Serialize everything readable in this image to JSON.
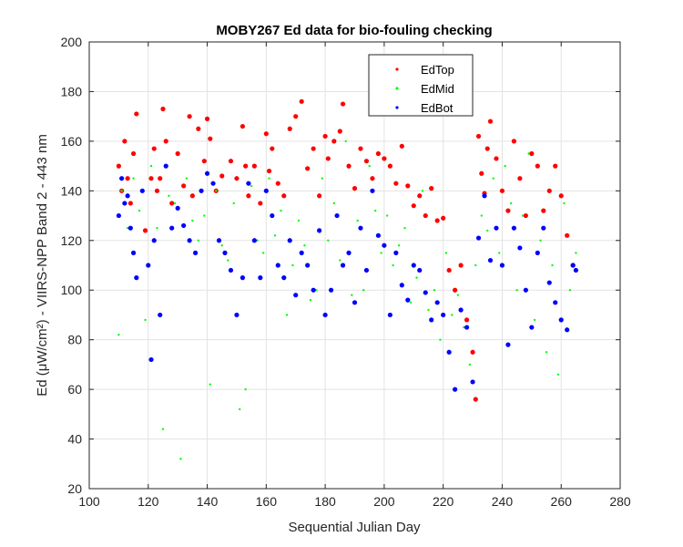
{
  "chart_data": {
    "type": "scatter",
    "title": "MOBY267 Ed data for bio-fouling checking",
    "xlabel": "Sequential Julian Day",
    "ylabel": "Ed (μW/cm²) - VIIRS-NPP Band 2 - 443 nm",
    "xlim": [
      100,
      280
    ],
    "ylim": [
      20,
      200
    ],
    "xticks": [
      100,
      120,
      140,
      160,
      180,
      200,
      220,
      240,
      260,
      280
    ],
    "yticks": [
      20,
      40,
      60,
      80,
      100,
      120,
      140,
      160,
      180,
      200
    ],
    "grid": true,
    "legend_position": "top-right",
    "colors": {
      "EdTop": "#ff0000",
      "EdMid": "#00ff00",
      "EdBot": "#0000ff"
    },
    "series": [
      {
        "name": "EdTop",
        "color": "#ff0000",
        "x": [
          110,
          111,
          112,
          113,
          114,
          115,
          116,
          119,
          121,
          122,
          123,
          124,
          125,
          126,
          128,
          130,
          132,
          134,
          135,
          137,
          139,
          140,
          141,
          143,
          145,
          148,
          150,
          152,
          153,
          154,
          156,
          158,
          160,
          161,
          162,
          164,
          166,
          168,
          170,
          172,
          174,
          176,
          178,
          180,
          181,
          183,
          185,
          186,
          188,
          190,
          192,
          194,
          196,
          198,
          200,
          202,
          204,
          206,
          208,
          210,
          212,
          214,
          216,
          218,
          220,
          222,
          224,
          226,
          228,
          230,
          231,
          232,
          233,
          234,
          235,
          236,
          238,
          240,
          242,
          244,
          246,
          248,
          250,
          252,
          254,
          256,
          258,
          260,
          262,
          264
        ],
        "y": [
          150,
          140,
          160,
          145,
          135,
          155,
          171,
          124,
          145,
          157,
          140,
          145,
          173,
          160,
          135,
          155,
          142,
          170,
          138,
          165,
          152,
          169,
          161,
          140,
          146,
          152,
          145,
          166,
          150,
          138,
          150,
          135,
          163,
          148,
          157,
          143,
          138,
          165,
          170,
          176,
          149,
          157,
          138,
          162,
          153,
          160,
          164,
          175,
          150,
          141,
          157,
          152,
          145,
          155,
          153,
          150,
          143,
          158,
          142,
          134,
          138,
          130,
          141,
          128,
          129,
          108,
          100,
          110,
          88,
          75,
          56,
          162,
          147,
          139,
          157,
          168,
          153,
          140,
          132,
          160,
          145,
          130,
          155,
          150,
          132,
          140,
          150,
          138,
          122,
          110
        ]
      },
      {
        "name": "EdMid",
        "color": "#00ff00",
        "x": [
          110,
          111,
          113,
          115,
          117,
          119,
          121,
          123,
          125,
          127,
          129,
          131,
          133,
          135,
          137,
          139,
          141,
          143,
          145,
          147,
          149,
          151,
          153,
          155,
          157,
          159,
          161,
          163,
          165,
          167,
          169,
          171,
          173,
          175,
          177,
          179,
          181,
          183,
          185,
          187,
          189,
          191,
          193,
          195,
          197,
          199,
          201,
          203,
          205,
          207,
          209,
          211,
          213,
          215,
          217,
          219,
          221,
          223,
          225,
          227,
          229,
          231,
          233,
          235,
          237,
          239,
          241,
          243,
          245,
          247,
          249,
          251,
          253,
          255,
          257,
          259,
          261,
          263,
          265
        ],
        "y": [
          82,
          140,
          125,
          145,
          132,
          88,
          150,
          125,
          44,
          138,
          135,
          32,
          145,
          128,
          120,
          130,
          62,
          140,
          118,
          112,
          135,
          52,
          60,
          142,
          120,
          115,
          145,
          122,
          132,
          90,
          110,
          128,
          118,
          96,
          100,
          145,
          120,
          135,
          112,
          160,
          98,
          128,
          100,
          150,
          132,
          115,
          130,
          110,
          118,
          125,
          95,
          105,
          140,
          92,
          100,
          80,
          115,
          90,
          98,
          85,
          70,
          110,
          130,
          124,
          145,
          115,
          150,
          135,
          100,
          130,
          155,
          88,
          120,
          75,
          110,
          66,
          135,
          100,
          115
        ]
      },
      {
        "name": "EdBot",
        "color": "#0000ff",
        "x": [
          110,
          111,
          112,
          113,
          114,
          115,
          116,
          118,
          120,
          121,
          122,
          124,
          126,
          128,
          130,
          132,
          134,
          136,
          138,
          140,
          142,
          144,
          146,
          148,
          150,
          152,
          154,
          156,
          158,
          160,
          162,
          164,
          166,
          168,
          170,
          172,
          174,
          176,
          178,
          180,
          182,
          184,
          186,
          188,
          190,
          192,
          194,
          196,
          198,
          200,
          202,
          204,
          206,
          208,
          210,
          212,
          214,
          216,
          218,
          220,
          222,
          224,
          226,
          228,
          230,
          232,
          234,
          236,
          238,
          240,
          242,
          244,
          246,
          248,
          250,
          252,
          254,
          256,
          258,
          260,
          262,
          264,
          265
        ],
        "y": [
          130,
          145,
          135,
          138,
          125,
          115,
          105,
          140,
          110,
          72,
          120,
          90,
          150,
          125,
          133,
          126,
          120,
          115,
          140,
          147,
          143,
          120,
          115,
          108,
          90,
          105,
          143,
          120,
          105,
          140,
          130,
          110,
          105,
          120,
          98,
          115,
          110,
          100,
          124,
          90,
          100,
          130,
          110,
          115,
          95,
          125,
          108,
          140,
          122,
          118,
          90,
          115,
          102,
          96,
          110,
          108,
          99,
          88,
          95,
          90,
          75,
          60,
          92,
          85,
          63,
          121,
          138,
          112,
          125,
          110,
          78,
          125,
          117,
          100,
          85,
          115,
          125,
          103,
          95,
          88,
          84,
          110,
          108
        ]
      }
    ]
  }
}
